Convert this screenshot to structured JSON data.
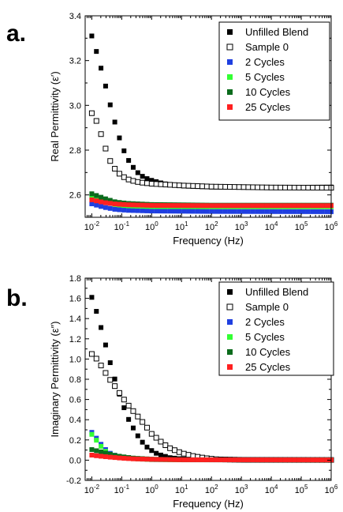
{
  "chart_data": [
    {
      "panel_label": "a.",
      "type": "scatter",
      "xlabel": "Frequency (Hz)",
      "ylabel": "Real Permittivity (ε′)",
      "xscale": "log",
      "xlim": [
        0.006,
        1000000
      ],
      "ylim": [
        2.5,
        3.4
      ],
      "xticks": [
        0.01,
        0.1,
        1,
        10,
        100,
        1000,
        10000,
        100000,
        1000000
      ],
      "xticklabels": [
        {
          "base": "10",
          "exp": "-2"
        },
        {
          "base": "10",
          "exp": "-1"
        },
        {
          "base": "10",
          "exp": "0"
        },
        {
          "base": "10",
          "exp": "1"
        },
        {
          "base": "10",
          "exp": "2"
        },
        {
          "base": "10",
          "exp": "3"
        },
        {
          "base": "10",
          "exp": "4"
        },
        {
          "base": "10",
          "exp": "5"
        },
        {
          "base": "10",
          "exp": "6"
        }
      ],
      "yticks": [
        2.6,
        2.8,
        3.0,
        3.2,
        3.4
      ],
      "yticklabels": [
        "2.6",
        "2.8",
        "3.0",
        "3.2",
        "3.4"
      ],
      "legend_position": "top-right",
      "series": [
        {
          "name": "Unfilled Blend",
          "marker": "filled-square",
          "color": "#000000",
          "anchors": [
            [
              -2,
              3.31
            ],
            [
              -1.8,
              3.22
            ],
            [
              -1.6,
              3.12
            ],
            [
              -1.4,
              3.01
            ],
            [
              -1.2,
              2.91
            ],
            [
              -1,
              2.82
            ],
            [
              -0.8,
              2.76
            ],
            [
              -0.6,
              2.72
            ],
            [
              -0.4,
              2.69
            ],
            [
              -0.2,
              2.675
            ],
            [
              0,
              2.665
            ],
            [
              0.4,
              2.65
            ],
            [
              1,
              2.64
            ],
            [
              2,
              2.635
            ],
            [
              4,
              2.633
            ],
            [
              6,
              2.635
            ]
          ]
        },
        {
          "name": "Sample 0",
          "marker": "open-square",
          "color": "#000000",
          "anchors": [
            [
              -2,
              2.965
            ],
            [
              -1.8,
              2.92
            ],
            [
              -1.6,
              2.83
            ],
            [
              -1.4,
              2.755
            ],
            [
              -1.2,
              2.71
            ],
            [
              -1,
              2.685
            ],
            [
              -0.8,
              2.67
            ],
            [
              -0.6,
              2.662
            ],
            [
              -0.4,
              2.656
            ],
            [
              0,
              2.65
            ],
            [
              1,
              2.642
            ],
            [
              2,
              2.637
            ],
            [
              4,
              2.633
            ],
            [
              6,
              2.632
            ]
          ]
        },
        {
          "name": "2 Cycles",
          "marker": "filled-square",
          "color": "#1f3fe0",
          "anchors": [
            [
              -2,
              2.56
            ],
            [
              -1.6,
              2.545
            ],
            [
              -1.2,
              2.535
            ],
            [
              -0.8,
              2.531
            ],
            [
              0,
              2.528
            ],
            [
              2,
              2.526
            ],
            [
              6,
              2.525
            ]
          ]
        },
        {
          "name": "5 Cycles",
          "marker": "filled-square",
          "color": "#33ff33",
          "anchors": [
            [
              -2,
              2.59
            ],
            [
              -1.6,
              2.57
            ],
            [
              -1.2,
              2.556
            ],
            [
              -0.8,
              2.551
            ],
            [
              0,
              2.548
            ],
            [
              2,
              2.547
            ],
            [
              6,
              2.547
            ]
          ]
        },
        {
          "name": "10 Cycles",
          "marker": "filled-square",
          "color": "#0b6b1c",
          "anchors": [
            [
              -2,
              2.605
            ],
            [
              -1.6,
              2.585
            ],
            [
              -1.2,
              2.568
            ],
            [
              -0.8,
              2.562
            ],
            [
              0,
              2.557
            ],
            [
              2,
              2.554
            ],
            [
              6,
              2.554
            ]
          ]
        },
        {
          "name": "25 Cycles",
          "marker": "filled-square",
          "color": "#ff2020",
          "anchors": [
            [
              -2,
              2.578
            ],
            [
              -1.6,
              2.566
            ],
            [
              -1.2,
              2.559
            ],
            [
              -0.8,
              2.556
            ],
            [
              0,
              2.553
            ],
            [
              2,
              2.552
            ],
            [
              6,
              2.552
            ]
          ]
        }
      ]
    },
    {
      "panel_label": "b.",
      "type": "scatter",
      "xlabel": "Frequency (Hz)",
      "ylabel": "Imaginary Permittivity (ε″)",
      "xscale": "log",
      "xlim": [
        0.006,
        1000000
      ],
      "ylim": [
        -0.2,
        1.8
      ],
      "xticks": [
        0.01,
        0.1,
        1,
        10,
        100,
        1000,
        10000,
        100000,
        1000000
      ],
      "xticklabels": [
        {
          "base": "10",
          "exp": "-2"
        },
        {
          "base": "10",
          "exp": "-1"
        },
        {
          "base": "10",
          "exp": "0"
        },
        {
          "base": "10",
          "exp": "1"
        },
        {
          "base": "10",
          "exp": "2"
        },
        {
          "base": "10",
          "exp": "3"
        },
        {
          "base": "10",
          "exp": "4"
        },
        {
          "base": "10",
          "exp": "5"
        },
        {
          "base": "10",
          "exp": "6"
        }
      ],
      "yticks": [
        -0.2,
        0.0,
        0.2,
        0.4,
        0.6,
        0.8,
        1.0,
        1.2,
        1.4,
        1.6,
        1.8
      ],
      "yticklabels": [
        "-0.2",
        "0.0",
        "0.2",
        "0.4",
        "0.6",
        "0.8",
        "1.0",
        "1.2",
        "1.4",
        "1.6",
        "1.8"
      ],
      "legend_position": "top-right",
      "series": [
        {
          "name": "Unfilled Blend",
          "marker": "filled-square",
          "color": "#000000",
          "anchors": [
            [
              -2,
              1.61
            ],
            [
              -1.8,
              1.43
            ],
            [
              -1.6,
              1.21
            ],
            [
              -1.4,
              0.98
            ],
            [
              -1.2,
              0.77
            ],
            [
              -1,
              0.58
            ],
            [
              -0.8,
              0.42
            ],
            [
              -0.6,
              0.31
            ],
            [
              -0.4,
              0.21
            ],
            [
              -0.2,
              0.14
            ],
            [
              0,
              0.095
            ],
            [
              0.2,
              0.06
            ],
            [
              0.6,
              0.025
            ],
            [
              1,
              0.012
            ],
            [
              1.6,
              0.005
            ],
            [
              2,
              0.003
            ],
            [
              6,
              0.002
            ]
          ]
        },
        {
          "name": "Sample 0",
          "marker": "open-square",
          "color": "#000000",
          "anchors": [
            [
              -2,
              1.05
            ],
            [
              -1.8,
              0.99
            ],
            [
              -1.6,
              0.89
            ],
            [
              -1.4,
              0.8
            ],
            [
              -1.2,
              0.72
            ],
            [
              -1,
              0.63
            ],
            [
              -0.8,
              0.55
            ],
            [
              -0.6,
              0.48
            ],
            [
              -0.4,
              0.41
            ],
            [
              -0.2,
              0.34
            ],
            [
              0,
              0.26
            ],
            [
              0.2,
              0.21
            ],
            [
              0.4,
              0.16
            ],
            [
              0.6,
              0.12
            ],
            [
              1,
              0.07
            ],
            [
              1.4,
              0.04
            ],
            [
              1.8,
              0.02
            ],
            [
              2.2,
              0.008
            ],
            [
              3,
              0.003
            ],
            [
              6,
              0.002
            ]
          ]
        },
        {
          "name": "2 Cycles",
          "marker": "filled-square",
          "color": "#1f3fe0",
          "anchors": [
            [
              -2,
              0.275
            ],
            [
              -1.8,
              0.2
            ],
            [
              -1.6,
              0.12
            ],
            [
              -1.4,
              0.07
            ],
            [
              -1.2,
              0.045
            ],
            [
              -1,
              0.03
            ],
            [
              -0.6,
              0.015
            ],
            [
              0,
              0.006
            ],
            [
              1,
              0.003
            ],
            [
              6,
              0.002
            ]
          ]
        },
        {
          "name": "5 Cycles",
          "marker": "filled-square",
          "color": "#33ff33",
          "anchors": [
            [
              -2,
              0.255
            ],
            [
              -1.8,
              0.18
            ],
            [
              -1.6,
              0.1
            ],
            [
              -1.4,
              0.06
            ],
            [
              -1.2,
              0.04
            ],
            [
              -1,
              0.028
            ],
            [
              -0.6,
              0.014
            ],
            [
              0,
              0.006
            ],
            [
              1,
              0.003
            ],
            [
              6,
              0.002
            ]
          ]
        },
        {
          "name": "10 Cycles",
          "marker": "filled-square",
          "color": "#0b6b1c",
          "anchors": [
            [
              -2,
              0.105
            ],
            [
              -1.8,
              0.09
            ],
            [
              -1.6,
              0.075
            ],
            [
              -1.4,
              0.06
            ],
            [
              -1.2,
              0.045
            ],
            [
              -1,
              0.035
            ],
            [
              -0.6,
              0.02
            ],
            [
              0,
              0.01
            ],
            [
              1,
              0.004
            ],
            [
              6,
              0.002
            ]
          ]
        },
        {
          "name": "25 Cycles",
          "marker": "filled-square",
          "color": "#ff2020",
          "anchors": [
            [
              -2,
              0.05
            ],
            [
              -1.8,
              0.042
            ],
            [
              -1.6,
              0.036
            ],
            [
              -1.4,
              0.03
            ],
            [
              -1.2,
              0.025
            ],
            [
              -1,
              0.02
            ],
            [
              -0.6,
              0.013
            ],
            [
              0,
              0.008
            ],
            [
              1,
              0.004
            ],
            [
              6,
              0.002
            ]
          ]
        }
      ]
    }
  ]
}
